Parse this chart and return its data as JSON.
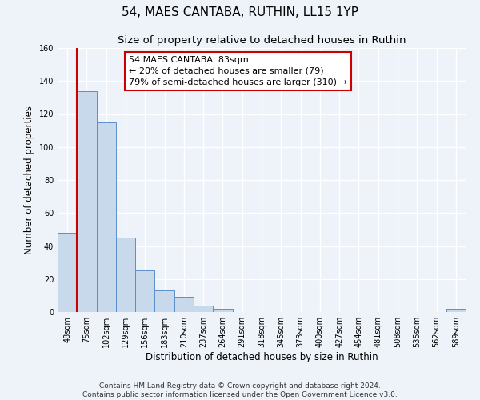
{
  "title": "54, MAES CANTABA, RUTHIN, LL15 1YP",
  "subtitle": "Size of property relative to detached houses in Ruthin",
  "xlabel": "Distribution of detached houses by size in Ruthin",
  "ylabel": "Number of detached properties",
  "bin_labels": [
    "48sqm",
    "75sqm",
    "102sqm",
    "129sqm",
    "156sqm",
    "183sqm",
    "210sqm",
    "237sqm",
    "264sqm",
    "291sqm",
    "318sqm",
    "345sqm",
    "373sqm",
    "400sqm",
    "427sqm",
    "454sqm",
    "481sqm",
    "508sqm",
    "535sqm",
    "562sqm",
    "589sqm"
  ],
  "bar_heights": [
    48,
    134,
    115,
    45,
    25,
    13,
    9,
    4,
    2,
    0,
    0,
    0,
    0,
    0,
    0,
    0,
    0,
    0,
    0,
    0,
    2
  ],
  "bar_color": "#c9d9ec",
  "bar_edge_color": "#5b8fc9",
  "vline_color": "#cc0000",
  "vline_x_index": 1,
  "ylim": [
    0,
    160
  ],
  "yticks": [
    0,
    20,
    40,
    60,
    80,
    100,
    120,
    140,
    160
  ],
  "annotation_text": "54 MAES CANTABA: 83sqm\n← 20% of detached houses are smaller (79)\n79% of semi-detached houses are larger (310) →",
  "annotation_box_edge": "#cc0000",
  "footer_line1": "Contains HM Land Registry data © Crown copyright and database right 2024.",
  "footer_line2": "Contains public sector information licensed under the Open Government Licence v3.0.",
  "background_color": "#eef2f9",
  "grid_color": "#ffffff",
  "title_fontsize": 11,
  "subtitle_fontsize": 9.5,
  "axis_label_fontsize": 8.5,
  "tick_fontsize": 7,
  "annotation_fontsize": 8,
  "footer_fontsize": 6.5
}
